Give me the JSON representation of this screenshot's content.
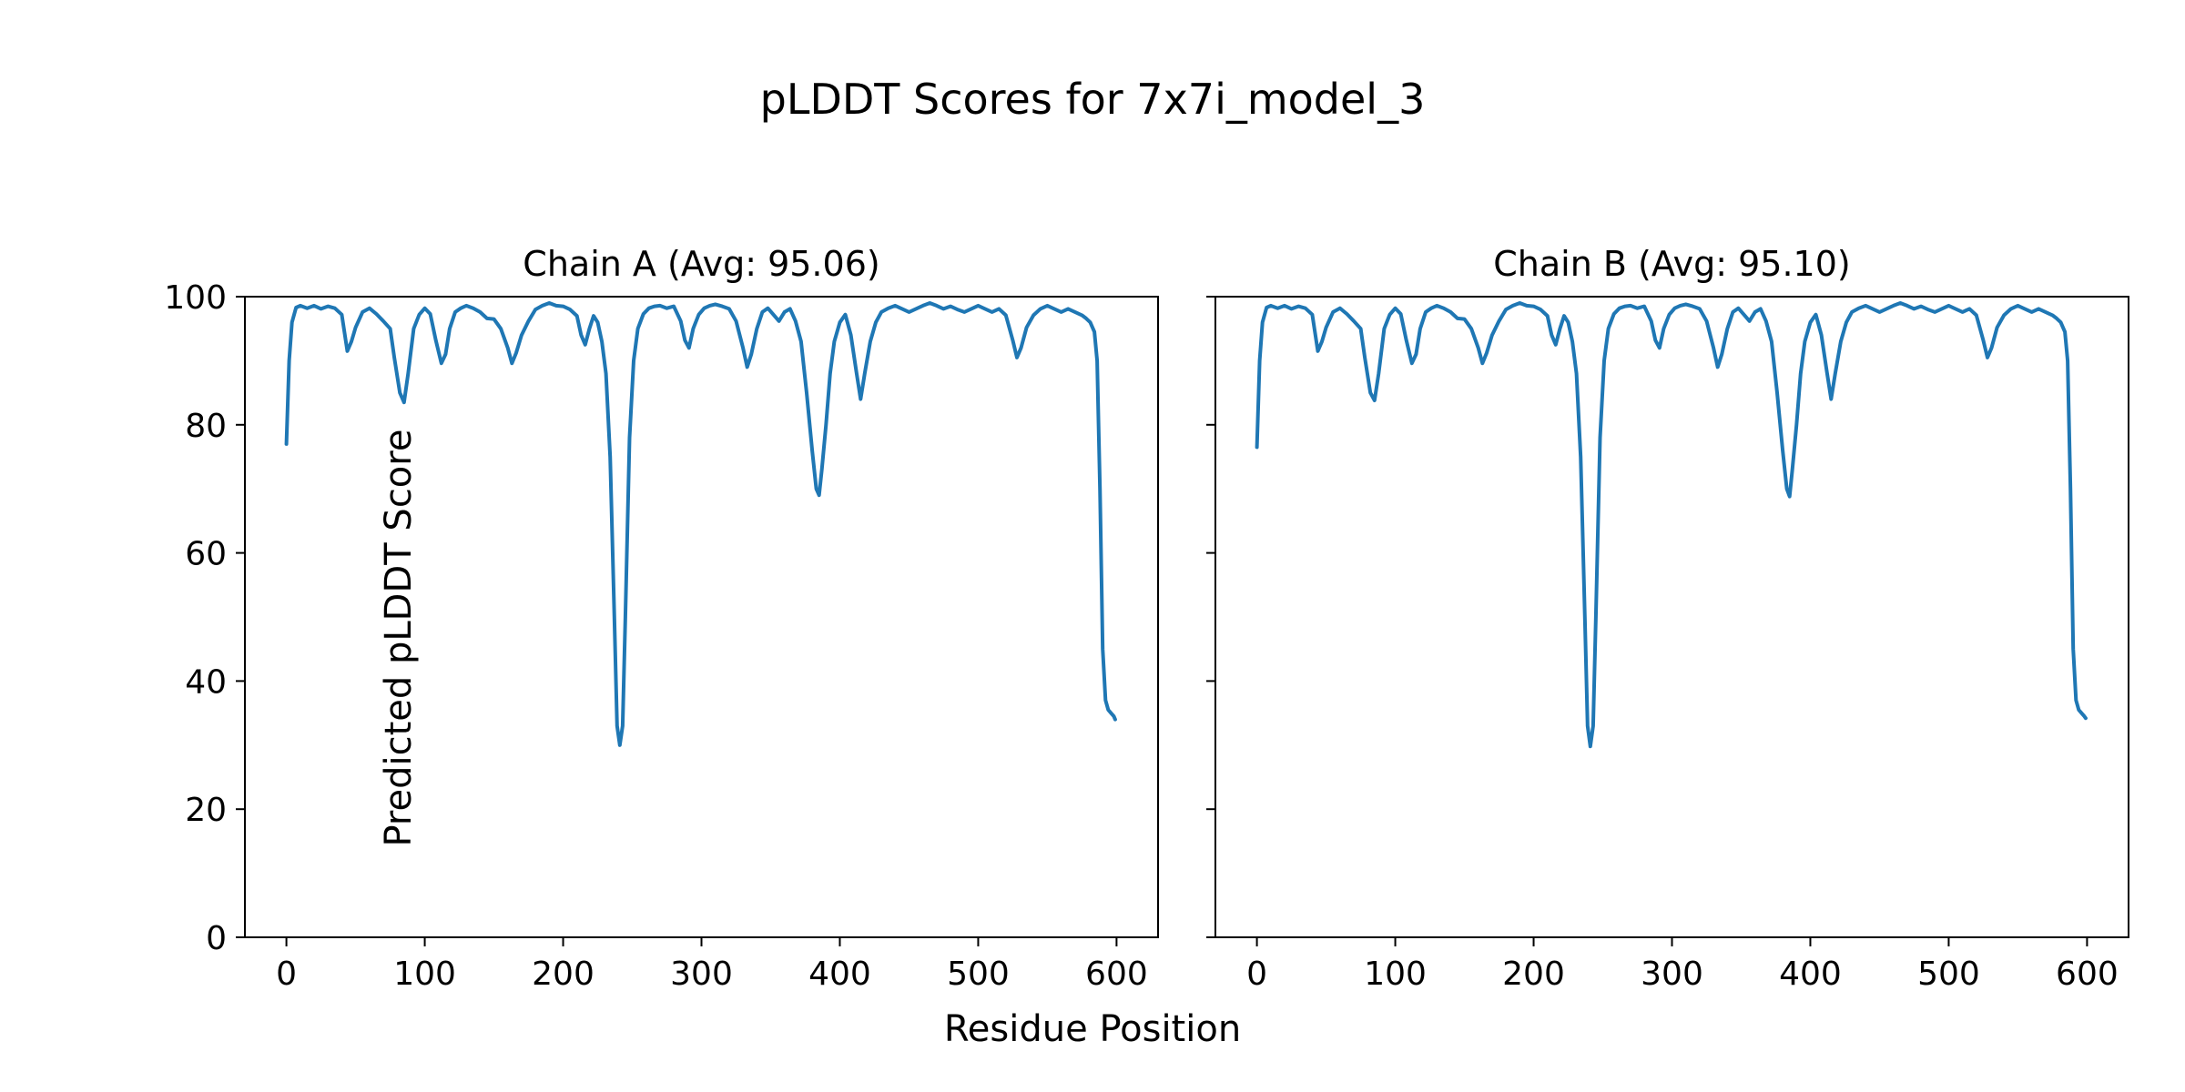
{
  "figure": {
    "title": "pLDDT Scores for 7x7i_model_3",
    "xlabel": "Residue Position",
    "ylabel": "Predicted pLDDT Score",
    "line_color": "#1f77b4",
    "axis_color": "#000000",
    "background": "#ffffff"
  },
  "chart_data": [
    {
      "type": "line",
      "title": "Chain A (Avg: 95.06)",
      "avg": 95.06,
      "xlim": [
        -30,
        630
      ],
      "ylim": [
        0,
        100
      ],
      "xticks": [
        0,
        100,
        200,
        300,
        400,
        500,
        600
      ],
      "yticks": [
        0,
        20,
        40,
        60,
        80,
        100
      ],
      "ytick_labels_visible": true,
      "grid": false,
      "legend": "none",
      "x": [
        0,
        2,
        4,
        7,
        10,
        15,
        20,
        25,
        30,
        35,
        40,
        44,
        47,
        50,
        55,
        60,
        65,
        70,
        75,
        78,
        82,
        85,
        88,
        92,
        96,
        100,
        104,
        108,
        112,
        115,
        118,
        122,
        126,
        130,
        135,
        140,
        145,
        150,
        155,
        160,
        163,
        166,
        170,
        175,
        180,
        185,
        190,
        195,
        200,
        205,
        210,
        213,
        216,
        219,
        222,
        225,
        228,
        231,
        234,
        237,
        239,
        241,
        243,
        245,
        248,
        251,
        254,
        258,
        262,
        266,
        270,
        275,
        280,
        285,
        288,
        291,
        294,
        298,
        302,
        306,
        310,
        315,
        320,
        325,
        330,
        333,
        336,
        340,
        344,
        348,
        352,
        356,
        360,
        364,
        368,
        372,
        376,
        380,
        383,
        385,
        387,
        390,
        393,
        396,
        400,
        404,
        408,
        412,
        415,
        418,
        422,
        426,
        430,
        435,
        440,
        445,
        450,
        455,
        460,
        465,
        470,
        475,
        480,
        485,
        490,
        495,
        500,
        505,
        510,
        515,
        520,
        525,
        528,
        531,
        535,
        540,
        545,
        550,
        555,
        560,
        565,
        570,
        575,
        578,
        581,
        584,
        586,
        588,
        590,
        592,
        594,
        596,
        598,
        599
      ],
      "y": [
        77,
        90,
        96,
        98.3,
        98.6,
        98.2,
        98.6,
        98.1,
        98.5,
        98.2,
        97.2,
        91.5,
        93,
        95.2,
        97.6,
        98.2,
        97.3,
        96.2,
        95,
        90.5,
        85,
        83.5,
        88,
        95,
        97.2,
        98.2,
        97.3,
        93.2,
        89.6,
        91,
        95,
        97.6,
        98.2,
        98.6,
        98.2,
        97.6,
        96.6,
        96.5,
        95,
        92,
        89.6,
        91.2,
        94,
        96.2,
        98,
        98.6,
        99,
        98.6,
        98.5,
        98,
        97,
        94,
        92.5,
        95,
        97,
        96,
        93,
        88,
        75,
        50,
        33,
        30,
        33,
        50,
        78,
        90,
        95,
        97.3,
        98.2,
        98.5,
        98.6,
        98.2,
        98.5,
        96.2,
        93.2,
        92,
        95,
        97.2,
        98.2,
        98.6,
        98.8,
        98.5,
        98.1,
        96.2,
        92,
        89,
        91,
        95,
        97.6,
        98.2,
        97.2,
        96.2,
        97.6,
        98.1,
        96.2,
        93,
        85,
        76,
        70,
        69,
        73,
        80,
        88,
        93,
        96,
        97.2,
        94,
        88.2,
        84,
        88,
        93,
        96,
        97.6,
        98.2,
        98.6,
        98.1,
        97.6,
        98.1,
        98.6,
        99,
        98.6,
        98.1,
        98.5,
        98,
        97.6,
        98.1,
        98.6,
        98.1,
        97.6,
        98.1,
        97.1,
        93.2,
        90.5,
        92,
        95.2,
        97.1,
        98.1,
        98.6,
        98.1,
        97.6,
        98.1,
        97.6,
        97.1,
        96.6,
        96,
        94.5,
        90,
        70,
        45,
        37,
        35.5,
        35,
        34.5,
        34
      ]
    },
    {
      "type": "line",
      "title": "Chain B (Avg: 95.10)",
      "avg": 95.1,
      "xlim": [
        -30,
        630
      ],
      "ylim": [
        0,
        100
      ],
      "xticks": [
        0,
        100,
        200,
        300,
        400,
        500,
        600
      ],
      "yticks": [
        0,
        20,
        40,
        60,
        80,
        100
      ],
      "ytick_labels_visible": false,
      "grid": false,
      "legend": "none",
      "x": [
        0,
        2,
        4,
        7,
        10,
        15,
        20,
        25,
        30,
        35,
        40,
        44,
        47,
        50,
        55,
        60,
        65,
        70,
        75,
        78,
        82,
        85,
        88,
        92,
        96,
        100,
        104,
        108,
        112,
        115,
        118,
        122,
        126,
        130,
        135,
        140,
        145,
        150,
        155,
        160,
        163,
        166,
        170,
        175,
        180,
        185,
        190,
        195,
        200,
        205,
        210,
        213,
        216,
        219,
        222,
        225,
        228,
        231,
        234,
        237,
        239,
        241,
        243,
        245,
        248,
        251,
        254,
        258,
        262,
        266,
        270,
        275,
        280,
        285,
        288,
        291,
        294,
        298,
        302,
        306,
        310,
        315,
        320,
        325,
        330,
        333,
        336,
        340,
        344,
        348,
        352,
        356,
        360,
        364,
        368,
        372,
        376,
        380,
        383,
        385,
        387,
        390,
        393,
        396,
        400,
        404,
        408,
        412,
        415,
        418,
        422,
        426,
        430,
        435,
        440,
        445,
        450,
        455,
        460,
        465,
        470,
        475,
        480,
        485,
        490,
        495,
        500,
        505,
        510,
        515,
        520,
        525,
        528,
        531,
        535,
        540,
        545,
        550,
        555,
        560,
        565,
        570,
        575,
        578,
        581,
        584,
        586,
        588,
        590,
        592,
        594,
        596,
        598,
        599
      ],
      "y": [
        76.5,
        90,
        96,
        98.3,
        98.6,
        98.2,
        98.6,
        98.1,
        98.5,
        98.2,
        97.2,
        91.5,
        93,
        95.2,
        97.6,
        98.2,
        97.3,
        96.2,
        95,
        90.5,
        85,
        83.8,
        88,
        95,
        97.2,
        98.2,
        97.3,
        93.2,
        89.6,
        91,
        95,
        97.6,
        98.2,
        98.6,
        98.2,
        97.6,
        96.6,
        96.5,
        95,
        92,
        89.6,
        91.2,
        94,
        96.2,
        98,
        98.6,
        99,
        98.6,
        98.5,
        98,
        97,
        94,
        92.5,
        95,
        97,
        96,
        93,
        88,
        75,
        50,
        33,
        29.8,
        33,
        50,
        78,
        90,
        95,
        97.3,
        98.2,
        98.5,
        98.6,
        98.2,
        98.5,
        96.2,
        93.2,
        92,
        95,
        97.2,
        98.2,
        98.6,
        98.8,
        98.5,
        98.1,
        96.2,
        92,
        89,
        91,
        95,
        97.6,
        98.2,
        97.2,
        96.2,
        97.6,
        98.1,
        96.2,
        93,
        85,
        76,
        70,
        68.8,
        73,
        80,
        88,
        93,
        96,
        97.2,
        94,
        88.2,
        84,
        88,
        93,
        96,
        97.6,
        98.2,
        98.6,
        98.1,
        97.6,
        98.1,
        98.6,
        99,
        98.6,
        98.1,
        98.5,
        98,
        97.6,
        98.1,
        98.6,
        98.1,
        97.6,
        98.1,
        97.1,
        93.2,
        90.5,
        92,
        95.2,
        97.1,
        98.1,
        98.6,
        98.1,
        97.6,
        98.1,
        97.6,
        97.1,
        96.6,
        96,
        94.5,
        90,
        70,
        45,
        37,
        35.5,
        35,
        34.5,
        34.2
      ]
    }
  ]
}
